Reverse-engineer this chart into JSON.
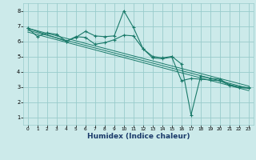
{
  "xlabel": "Humidex (Indice chaleur)",
  "bg_color": "#cceaea",
  "grid_color": "#99cccc",
  "line_color": "#1a7a6a",
  "xlim": [
    -0.5,
    23.5
  ],
  "ylim": [
    0.5,
    8.5
  ],
  "xticks": [
    0,
    1,
    2,
    3,
    4,
    5,
    6,
    7,
    8,
    9,
    10,
    11,
    12,
    13,
    14,
    15,
    16,
    17,
    18,
    19,
    20,
    21,
    22,
    23
  ],
  "yticks": [
    1,
    2,
    3,
    4,
    5,
    6,
    7,
    8
  ],
  "series1_x": [
    0,
    1,
    2,
    3,
    4,
    5,
    6,
    7,
    8,
    9,
    10,
    11,
    12,
    13,
    14,
    15,
    16,
    17,
    18,
    19,
    20,
    21,
    22,
    23
  ],
  "series1_y": [
    6.85,
    6.3,
    6.55,
    6.45,
    6.0,
    6.25,
    6.65,
    6.35,
    6.3,
    6.35,
    8.0,
    6.9,
    5.5,
    5.0,
    4.9,
    5.0,
    4.5,
    1.15,
    3.7,
    3.55,
    3.5,
    3.15,
    3.0,
    2.95
  ],
  "series2_x": [
    0,
    4,
    5,
    6,
    7,
    8,
    9,
    10,
    11,
    12,
    13,
    14,
    15,
    16,
    17,
    18,
    19,
    20,
    21,
    22,
    23
  ],
  "series2_y": [
    6.85,
    6.0,
    6.3,
    6.25,
    5.8,
    5.9,
    6.1,
    6.4,
    6.35,
    5.5,
    4.9,
    4.85,
    4.95,
    3.4,
    3.55,
    3.5,
    3.45,
    3.4,
    3.1,
    2.95,
    2.9
  ],
  "regression_lines": [
    {
      "x_start": 0,
      "y_start": 6.85,
      "x_end": 23,
      "y_end": 3.05
    },
    {
      "x_start": 0,
      "y_start": 6.72,
      "x_end": 23,
      "y_end": 2.9
    },
    {
      "x_start": 0,
      "y_start": 6.6,
      "x_end": 23,
      "y_end": 2.75
    }
  ],
  "xlabel_color": "#1a3a6a",
  "xlabel_fontsize": 6.5
}
